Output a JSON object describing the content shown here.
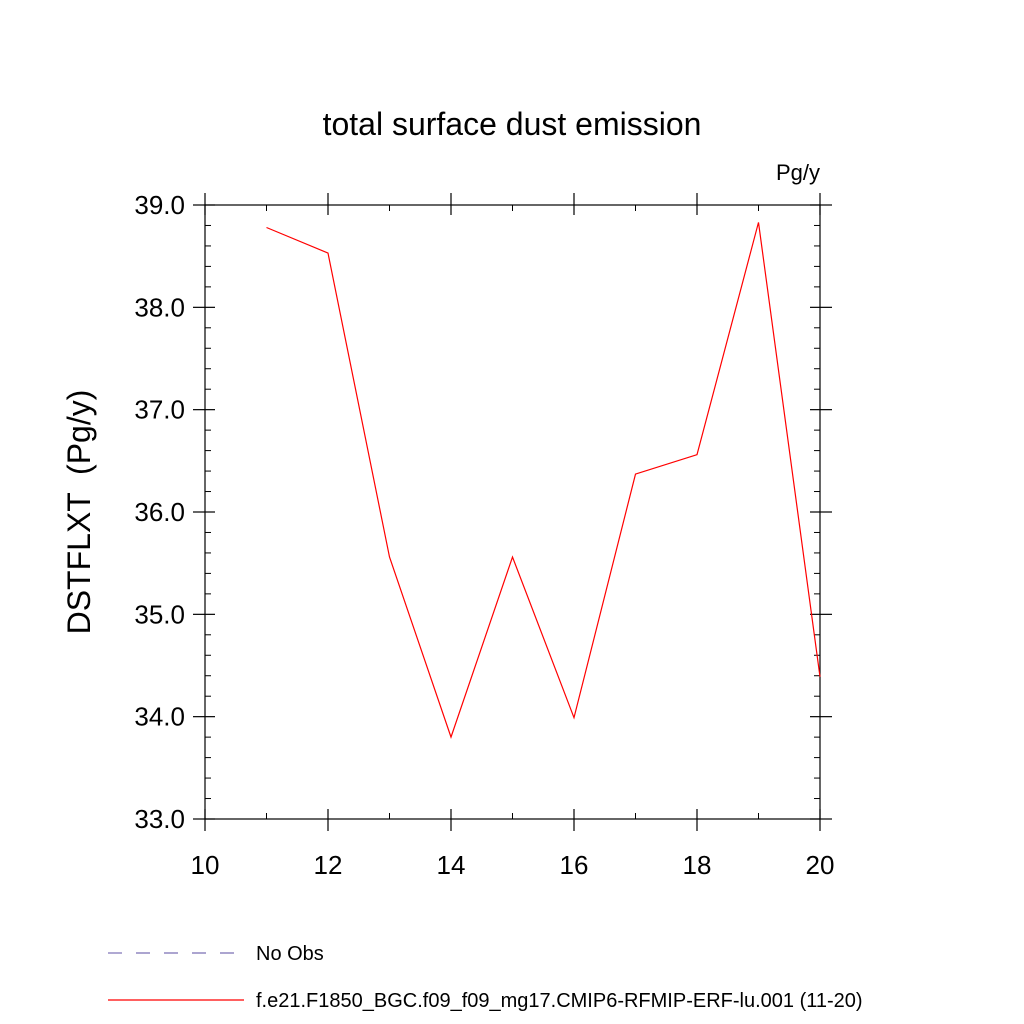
{
  "chart_data": {
    "type": "line",
    "title": "total surface dust emission",
    "units_label": "Pg/y",
    "ylabel": "DSTFLXT  (Pg/y)",
    "xlabel": "",
    "xlim": [
      10,
      20
    ],
    "ylim": [
      33.0,
      39.0
    ],
    "x_ticks": [
      10,
      12,
      14,
      16,
      18,
      20
    ],
    "x_tick_labels": [
      "10",
      "12",
      "14",
      "16",
      "18",
      "20"
    ],
    "y_ticks": [
      33.0,
      34.0,
      35.0,
      36.0,
      37.0,
      38.0,
      39.0
    ],
    "y_tick_labels": [
      "33.0",
      "34.0",
      "35.0",
      "36.0",
      "37.0",
      "38.0",
      "39.0"
    ],
    "grid": false,
    "legend_position": "bottom-left",
    "series": [
      {
        "name": "No Obs",
        "color": "#7b6fb5",
        "style": "dashed",
        "x": [],
        "y": []
      },
      {
        "name": "f.e21.F1850_BGC.f09_f09_mg17.CMIP6-RFMIP-ERF-lu.001 (11-20)",
        "color": "#ff0000",
        "style": "solid",
        "x": [
          11,
          12,
          13,
          14,
          15,
          16,
          17,
          18,
          19,
          20
        ],
        "y": [
          38.78,
          38.53,
          35.56,
          33.8,
          35.56,
          33.99,
          36.37,
          36.56,
          38.83,
          34.39
        ]
      }
    ]
  }
}
